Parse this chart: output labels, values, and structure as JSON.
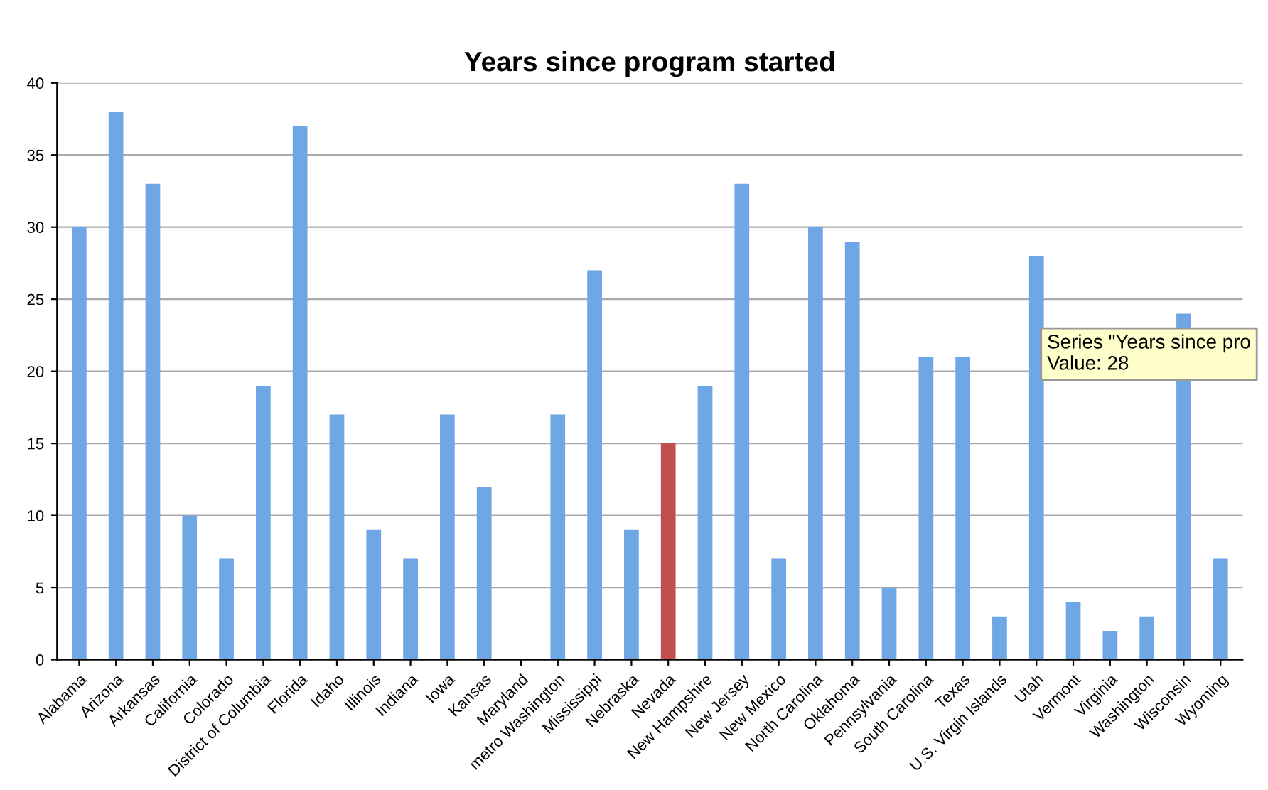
{
  "chart_data": {
    "type": "bar",
    "title": "Years since program started",
    "categories": [
      "Alabama",
      "Arizona",
      "Arkansas",
      "California",
      "Colorado",
      "District of Columbia",
      "Florida",
      "Idaho",
      "Illinois",
      "Indiana",
      "Iowa",
      "Kansas",
      "Maryland",
      "metro Washington",
      "Mississippi",
      "Nebraska",
      "Nevada",
      "New Hampshire",
      "New Jersey",
      "New Mexico",
      "North Carolina",
      "Oklahoma",
      "Pennsylvania",
      "South Carolina",
      "Texas",
      "U.S. Virgin Islands",
      "Utah",
      "Vermont",
      "Virginia",
      "Washington",
      "Wisconsin",
      "Wyoming"
    ],
    "values": [
      30,
      38,
      33,
      10,
      7,
      19,
      37,
      17,
      9,
      7,
      17,
      12,
      null,
      17,
      27,
      9,
      15,
      19,
      33,
      7,
      30,
      29,
      5,
      21,
      21,
      3,
      28,
      4,
      2,
      3,
      24,
      7
    ],
    "colors": [
      "#6ea6e6",
      "#6ea6e6",
      "#6ea6e6",
      "#6ea6e6",
      "#6ea6e6",
      "#6ea6e6",
      "#6ea6e6",
      "#6ea6e6",
      "#6ea6e6",
      "#6ea6e6",
      "#6ea6e6",
      "#6ea6e6",
      "#6ea6e6",
      "#6ea6e6",
      "#6ea6e6",
      "#6ea6e6",
      "#c0504d",
      "#6ea6e6",
      "#6ea6e6",
      "#6ea6e6",
      "#6ea6e6",
      "#6ea6e6",
      "#6ea6e6",
      "#6ea6e6",
      "#6ea6e6",
      "#6ea6e6",
      "#6ea6e6",
      "#6ea6e6",
      "#6ea6e6",
      "#6ea6e6",
      "#6ea6e6",
      "#6ea6e6"
    ],
    "ylim": [
      0,
      40
    ],
    "yticks": [
      0,
      5,
      10,
      15,
      20,
      25,
      30,
      35,
      40
    ],
    "grid": "y",
    "annotations": [
      "Series \"Years since pro\nValue: 28"
    ]
  }
}
